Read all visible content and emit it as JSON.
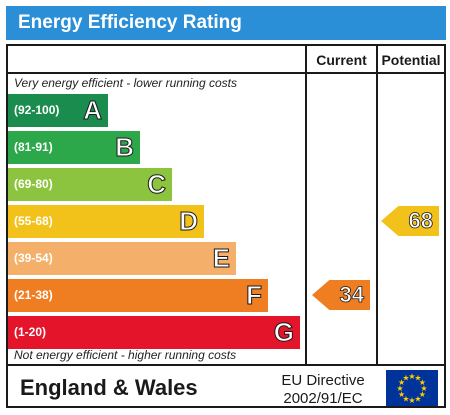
{
  "header": {
    "title": "Energy Efficiency Rating"
  },
  "columns": {
    "current": "Current",
    "potential": "Potential"
  },
  "notes": {
    "top": "Very energy efficient - lower running costs",
    "bottom": "Not energy efficient - higher running costs"
  },
  "chart_data": {
    "type": "bar",
    "title": "Energy Efficiency Rating",
    "bands": [
      {
        "range": "(92-100)",
        "letter": "A",
        "color": "#1a8c4e"
      },
      {
        "range": "(81-91)",
        "letter": "B",
        "color": "#2ca84a"
      },
      {
        "range": "(69-80)",
        "letter": "C",
        "color": "#8cc43f"
      },
      {
        "range": "(55-68)",
        "letter": "D",
        "color": "#f2c21a"
      },
      {
        "range": "(39-54)",
        "letter": "E",
        "color": "#f4b06a"
      },
      {
        "range": "(21-38)",
        "letter": "F",
        "color": "#ef7d22"
      },
      {
        "range": "(1-20)",
        "letter": "G",
        "color": "#e4142b"
      }
    ],
    "current": {
      "value": 34,
      "band": "F",
      "color": "#ef7d22"
    },
    "potential": {
      "value": 68,
      "band": "D",
      "color": "#f2c21a"
    }
  },
  "footer": {
    "country": "England & Wales",
    "directive_line1": "EU Directive",
    "directive_line2": "2002/91/EC"
  }
}
